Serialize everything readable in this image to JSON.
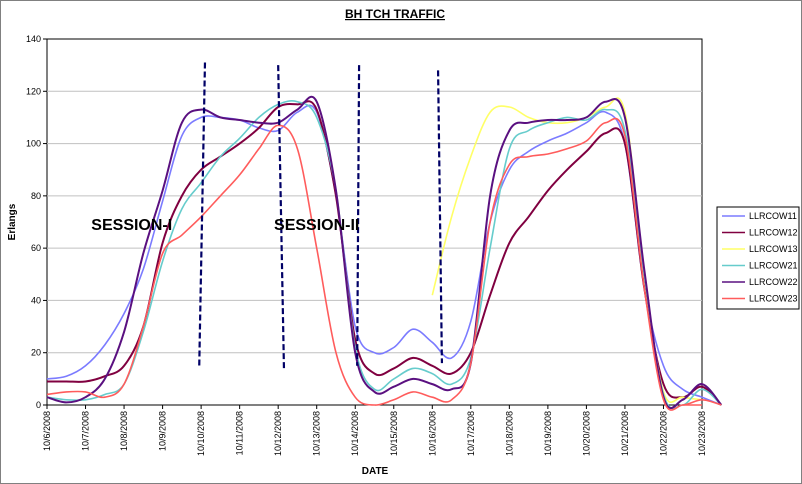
{
  "chart_data": {
    "type": "line",
    "title": "BH TCH TRAFFIC",
    "xlabel": "DATE",
    "ylabel": "Erlangs",
    "ylim": [
      0,
      140
    ],
    "yticks": [
      0,
      20,
      40,
      60,
      80,
      100,
      120,
      140
    ],
    "grid": "horizontal",
    "legend": "right",
    "categories": [
      "10/6/2008",
      "10/7/2008",
      "10/8/2008",
      "10/9/2008",
      "10/10/2008",
      "10/11/2008",
      "10/12/2008",
      "10/13/2008",
      "10/14/2008",
      "10/15/2008",
      "10/16/2008",
      "10/17/2008",
      "10/18/2008",
      "10/19/2008",
      "10/20/2008",
      "10/21/2008",
      "10/22/2008",
      "10/23/2008"
    ],
    "annotations": [
      {
        "text": "SESSION-I",
        "x": 4.4,
        "y": 67
      },
      {
        "text": "SESSION-II",
        "x": 14.0,
        "y": 67
      }
    ],
    "session_lines": [
      {
        "x0": 8.2,
        "y0": 131,
        "x1": 7.9,
        "y1": 14
      },
      {
        "x0": 12.0,
        "y0": 130,
        "x1": 12.3,
        "y1": 14
      },
      {
        "x0": 16.2,
        "y0": 130,
        "x1": 16.1,
        "y1": 15
      },
      {
        "x0": 20.3,
        "y0": 128,
        "x1": 20.5,
        "y1": 16
      }
    ],
    "series": [
      {
        "name": "LLRCOW11",
        "color": "#7b7bff",
        "x": [
          0,
          1,
          2,
          3,
          4,
          5,
          6,
          7,
          8,
          9,
          10,
          11,
          12,
          13,
          14,
          15,
          16,
          17,
          18,
          19,
          20,
          21,
          22,
          23,
          24,
          25,
          26,
          27,
          28,
          29,
          30,
          31,
          32,
          33,
          34,
          35
        ],
        "values": [
          10,
          11,
          15,
          23,
          35,
          52,
          78,
          103,
          110,
          110,
          109,
          106,
          105,
          112,
          112,
          80,
          30,
          20,
          22,
          29,
          24,
          18,
          32,
          70,
          90,
          97,
          101,
          104,
          108,
          112,
          100,
          45,
          15,
          6,
          3,
          0
        ]
      },
      {
        "name": "LLRCOW12",
        "color": "#800040",
        "x": [
          0,
          1,
          2,
          3,
          4,
          5,
          6,
          7,
          8,
          9,
          10,
          11,
          12,
          13,
          14,
          15,
          16,
          17,
          18,
          19,
          20,
          21,
          22,
          23,
          24,
          25,
          26,
          27,
          28,
          29,
          30,
          31,
          32,
          33,
          34,
          35
        ],
        "values": [
          9,
          9,
          9,
          11,
          15,
          30,
          62,
          80,
          90,
          95,
          100,
          106,
          114,
          115,
          113,
          80,
          25,
          12,
          14,
          18,
          15,
          12,
          20,
          42,
          62,
          72,
          82,
          90,
          97,
          104,
          100,
          45,
          8,
          3,
          7,
          0
        ]
      },
      {
        "name": "LLRCOW13",
        "color": "#ffff66",
        "x": [
          20,
          21,
          22,
          23,
          24,
          25,
          26,
          27,
          28,
          29,
          30,
          31,
          32,
          33,
          34
        ],
        "values": [
          42,
          72,
          95,
          112,
          114,
          110,
          108,
          108,
          110,
          114,
          112,
          50,
          5,
          3,
          2
        ]
      },
      {
        "name": "LLRCOW21",
        "color": "#66cccc",
        "x": [
          0,
          1,
          2,
          3,
          4,
          5,
          6,
          7,
          8,
          9,
          10,
          11,
          12,
          13,
          14,
          15,
          16,
          17,
          18,
          19,
          20,
          21,
          22,
          23,
          24,
          25,
          26,
          27,
          28,
          29,
          30,
          31,
          32,
          33,
          34,
          35
        ],
        "values": [
          3,
          2,
          2,
          4,
          8,
          28,
          55,
          75,
          85,
          95,
          102,
          110,
          115,
          116,
          110,
          82,
          22,
          6,
          10,
          14,
          12,
          8,
          18,
          60,
          98,
          105,
          108,
          110,
          109,
          113,
          105,
          50,
          4,
          0,
          6,
          0
        ]
      },
      {
        "name": "LLRCOW22",
        "color": "#5a1080",
        "x": [
          0,
          1,
          2,
          3,
          4,
          5,
          6,
          7,
          8,
          9,
          10,
          11,
          12,
          13,
          14,
          15,
          16,
          17,
          18,
          19,
          20,
          21,
          22,
          23,
          24,
          25,
          26,
          27,
          28,
          29,
          30,
          31,
          32,
          33,
          34,
          35
        ],
        "values": [
          3,
          1,
          3,
          10,
          28,
          58,
          82,
          108,
          113,
          110,
          109,
          108,
          108,
          113,
          116,
          82,
          20,
          5,
          7,
          10,
          8,
          6,
          16,
          80,
          105,
          108,
          109,
          109,
          110,
          116,
          110,
          52,
          3,
          2,
          8,
          0
        ]
      },
      {
        "name": "LLRCOW23",
        "color": "#ff5c5c",
        "x": [
          0,
          1,
          2,
          3,
          4,
          5,
          6,
          7,
          8,
          9,
          10,
          11,
          12,
          13,
          14,
          15,
          16,
          17,
          18,
          19,
          20,
          21,
          22,
          23,
          24,
          25,
          26,
          27,
          28,
          29,
          30,
          31,
          32,
          33,
          34,
          35
        ],
        "values": [
          4,
          5,
          5,
          3,
          8,
          30,
          58,
          65,
          72,
          80,
          88,
          98,
          107,
          98,
          60,
          20,
          3,
          0,
          2,
          5,
          3,
          2,
          16,
          70,
          92,
          95,
          96,
          98,
          101,
          108,
          103,
          45,
          2,
          0,
          2,
          0
        ]
      }
    ]
  }
}
